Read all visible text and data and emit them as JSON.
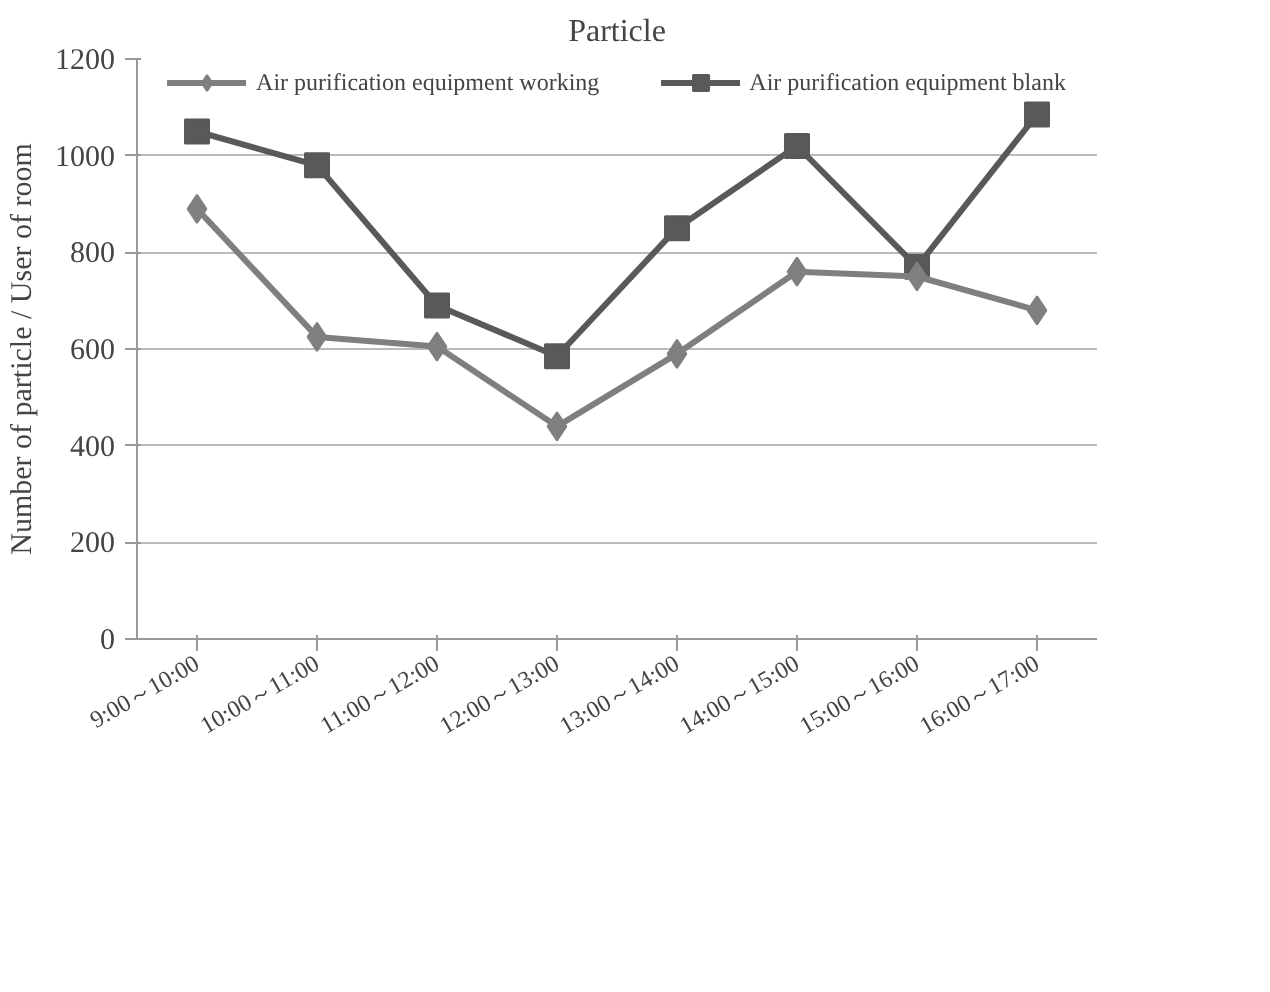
{
  "chart_data": {
    "type": "line",
    "title": "Particle",
    "ylabel": "Number of particle / User of room",
    "categories": [
      "9:00～10:00",
      "10:00～11:00",
      "11:00～12:00",
      "12:00～13:00",
      "13:00～14:00",
      "14:00～15:00",
      "15:00～16:00",
      "16:00～17:00"
    ],
    "series": [
      {
        "name": "Air purification equipment working",
        "color": "#7f7f7f",
        "marker": "diamond",
        "values": [
          890,
          625,
          605,
          440,
          590,
          760,
          750,
          680
        ]
      },
      {
        "name": "Air purification equipment blank",
        "color": "#595959",
        "marker": "square",
        "values": [
          1050,
          980,
          690,
          585,
          850,
          1020,
          770,
          1085
        ]
      }
    ],
    "ylim": [
      0,
      1200
    ],
    "yticks": [
      0,
      200,
      400,
      600,
      800,
      1000,
      1200
    ],
    "grid": "y",
    "legend": "top"
  }
}
